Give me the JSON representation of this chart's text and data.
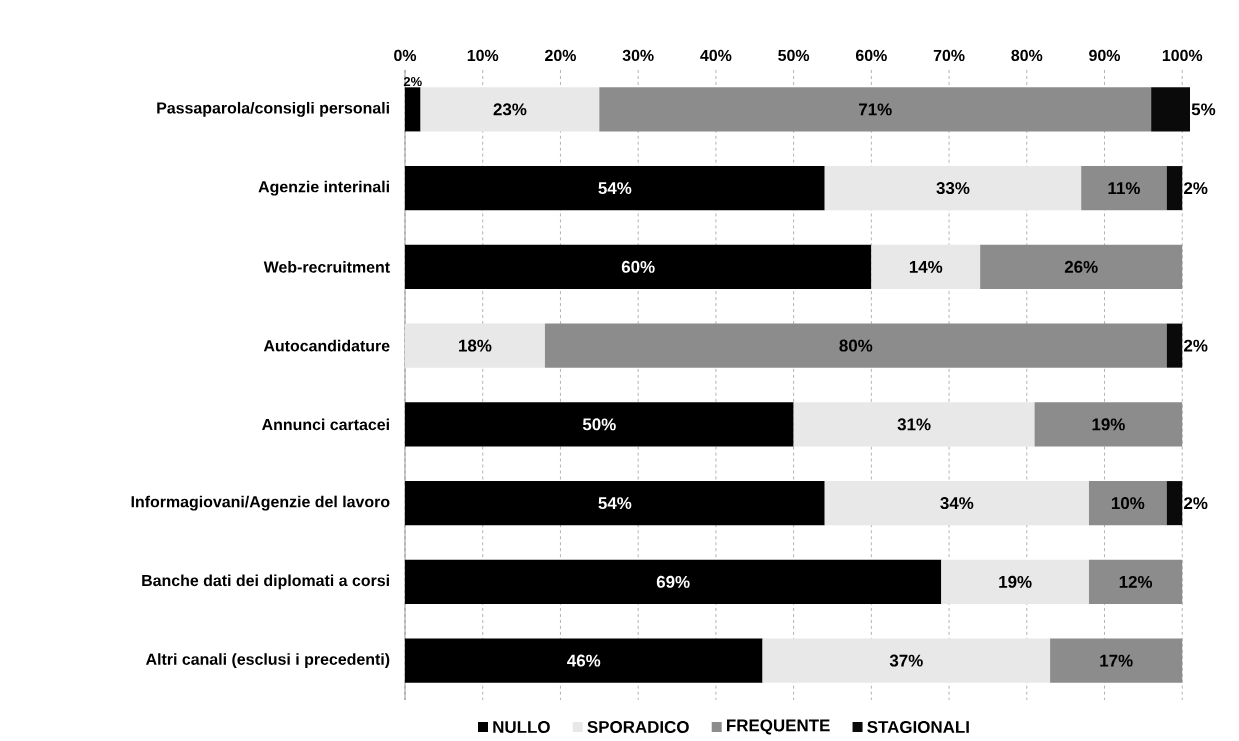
{
  "chart_data": {
    "type": "bar",
    "orientation": "horizontal",
    "stacked": true,
    "categories": [
      "Passaparola/consigli personali",
      "Agenzie interinali",
      "Web-recruitment",
      "Autocandidature",
      "Annunci cartacei",
      "Informagiovani/Agenzie del lavoro",
      "Banche dati dei diplomati a corsi",
      "Altri canali (esclusi i precedenti)"
    ],
    "series": [
      {
        "name": "NULLO",
        "color": "#000000",
        "values": [
          2,
          54,
          60,
          null,
          50,
          54,
          69,
          46
        ],
        "value_labels": [
          "2%",
          "54%",
          "60%",
          null,
          "50%",
          "54%",
          "69%",
          "46%"
        ]
      },
      {
        "name": "SPORADICO",
        "color": "#e8e8e8",
        "values": [
          23,
          33,
          14,
          18,
          31,
          34,
          19,
          37
        ],
        "value_labels": [
          "23%",
          "33%",
          "14%",
          "18%",
          "31%",
          "34%",
          "19%",
          "37%"
        ]
      },
      {
        "name": "FREQUENTE",
        "color": "#8c8c8c",
        "values": [
          71,
          11,
          26,
          80,
          19,
          10,
          12,
          17
        ],
        "value_labels": [
          "71%",
          "11%",
          "26%",
          "80%",
          "19%",
          "10%",
          "12%",
          "17%"
        ]
      },
      {
        "name": "STAGIONALI",
        "color": "#0a0a0a",
        "values": [
          5,
          2,
          null,
          2,
          null,
          2,
          null,
          null
        ],
        "value_labels": [
          "5%",
          "2%",
          null,
          "2%",
          null,
          "2%",
          null,
          null
        ]
      }
    ],
    "xlim": [
      0,
      101
    ],
    "xticks": [
      {
        "value": 0,
        "label": "0%"
      },
      {
        "value": 10,
        "label": "10%"
      },
      {
        "value": 20,
        "label": "20%"
      },
      {
        "value": 30,
        "label": "30%"
      },
      {
        "value": 40,
        "label": "40%"
      },
      {
        "value": 50,
        "label": "50%"
      },
      {
        "value": 60,
        "label": "60%"
      },
      {
        "value": 70,
        "label": "70%"
      },
      {
        "value": 80,
        "label": "80%"
      },
      {
        "value": 90,
        "label": "90%"
      },
      {
        "value": 100,
        "label": "100%"
      }
    ],
    "grid": "x",
    "legend": "bottom"
  }
}
